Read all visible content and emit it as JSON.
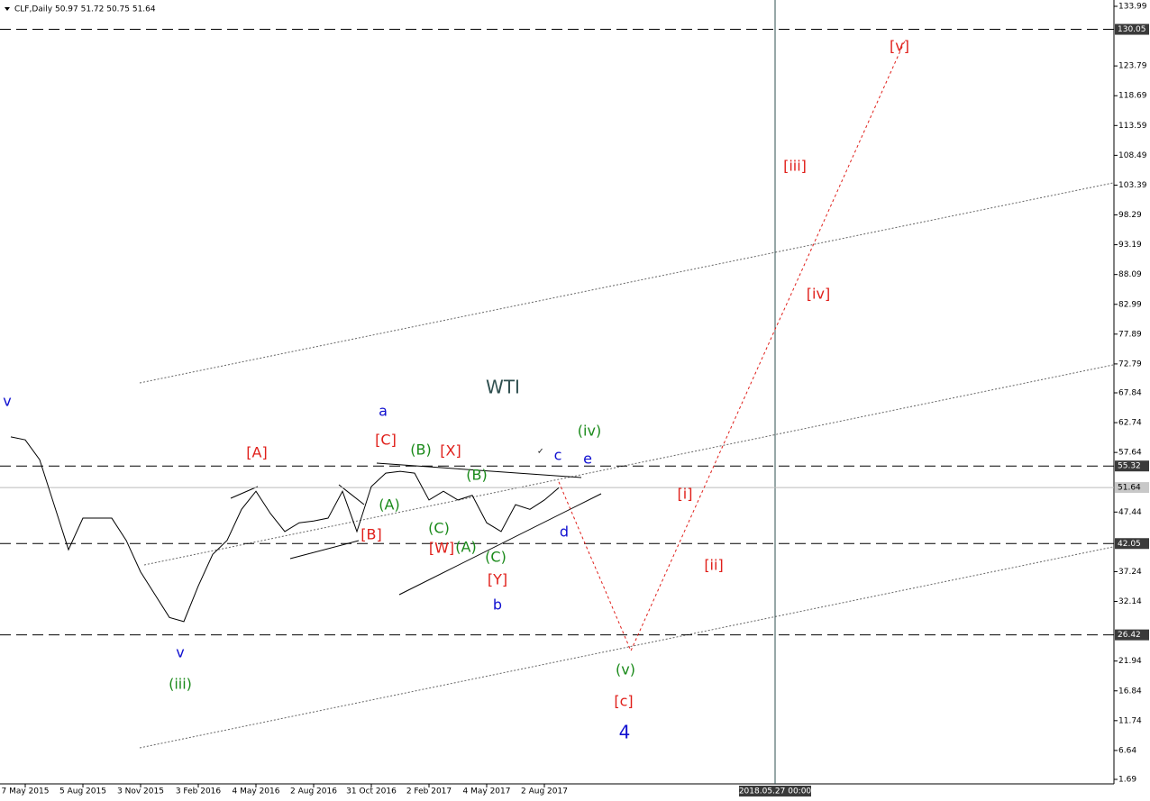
{
  "chart_data": {
    "type": "line",
    "title": "CLF,Daily  50.97 51.72 50.75 51.64",
    "categories": [
      null,
      "7 May 2015",
      null,
      null,
      null,
      "5 Aug 2015",
      null,
      null,
      null,
      "3 Nov 2015",
      null,
      null,
      null,
      "3 Feb 2016",
      null,
      null,
      null,
      "4 May 2016",
      null,
      null,
      null,
      "2 Aug 2016",
      null,
      null,
      null,
      "31 Oct 2016",
      null,
      null,
      null,
      "2 Feb 2017",
      null,
      null,
      null,
      "4 May 2017",
      null,
      null,
      null,
      "2 Aug 2017",
      null,
      null,
      null,
      null,
      null,
      null,
      null,
      null,
      null,
      null,
      null,
      null,
      null,
      null,
      null,
      "2018.05.27 00:00",
      null,
      null,
      null,
      null,
      null,
      null,
      null,
      null,
      null,
      null,
      null,
      null,
      null,
      null,
      null,
      null,
      null,
      null,
      null,
      null,
      null,
      null,
      null
    ],
    "highlight_category": "2018.05.27 00:00",
    "series": [
      {
        "color": "#000000",
        "style": "solid",
        "values": [
          60.3,
          59.8,
          56.4,
          48.7,
          41.0,
          46.4,
          46.4,
          46.4,
          42.6,
          37.2,
          33.3,
          29.4,
          28.7,
          34.8,
          40.2,
          42.6,
          47.9,
          51.0,
          47.2,
          44.1,
          45.6,
          45.9,
          46.4,
          51.0,
          44.1,
          51.8,
          54.1,
          54.4,
          54.1,
          49.5,
          51.0,
          49.5,
          50.3,
          45.6,
          44.1,
          48.7,
          47.9,
          49.5,
          51.6,
          null,
          null,
          null,
          null,
          null,
          null,
          null,
          null,
          null,
          null,
          null,
          null,
          null,
          null,
          null,
          null,
          null,
          null,
          null,
          null,
          null,
          null,
          null,
          null,
          null,
          null,
          null,
          null,
          null,
          null,
          null,
          null,
          null,
          null,
          null,
          null,
          null,
          null
        ]
      },
      {
        "color": "#e0201b",
        "style": "dotted",
        "values": [
          null,
          null,
          null,
          null,
          null,
          null,
          null,
          null,
          null,
          null,
          null,
          null,
          null,
          null,
          null,
          null,
          null,
          null,
          null,
          null,
          null,
          null,
          null,
          null,
          null,
          null,
          null,
          null,
          null,
          null,
          null,
          null,
          null,
          null,
          null,
          null,
          null,
          null,
          52.6,
          46.8,
          41.0,
          35.3,
          29.5,
          23.7,
          29.2,
          34.7,
          40.2,
          45.7,
          51.2,
          56.7,
          62.2,
          67.7,
          73.2,
          78.7,
          84.1,
          89.6,
          95.1,
          100.6,
          106.1,
          111.6,
          117.1,
          122.6,
          128.1,
          null,
          null,
          null,
          null,
          null,
          null,
          null,
          null,
          null,
          null,
          null,
          null,
          null,
          null
        ]
      }
    ],
    "ylim": [
      0.92,
      135.07
    ],
    "yticks": [
      133.99,
      123.79,
      118.69,
      113.59,
      108.49,
      103.39,
      98.29,
      93.19,
      88.09,
      82.99,
      77.89,
      72.79,
      67.84,
      62.74,
      57.64,
      47.44,
      37.24,
      32.14,
      21.94,
      16.84,
      11.74,
      6.64,
      1.69
    ],
    "levels": [
      130.05,
      55.32,
      42.05,
      26.42
    ],
    "last_price": 51.64,
    "annotations": [
      {
        "text": "v",
        "color": "#1010d0"
      },
      {
        "text": "v",
        "color": "#1010d0"
      },
      {
        "text": "(iii)",
        "color": "#1a8a1a"
      },
      {
        "text": "[A]",
        "color": "#e0201b"
      },
      {
        "text": "[B]",
        "color": "#e0201b"
      },
      {
        "text": "a",
        "color": "#1010d0"
      },
      {
        "text": "[C]",
        "color": "#e0201b"
      },
      {
        "text": "(B)",
        "color": "#1a8a1a"
      },
      {
        "text": "[X]",
        "color": "#e0201b"
      },
      {
        "text": "(A)",
        "color": "#1a8a1a"
      },
      {
        "text": "(C)",
        "color": "#1a8a1a"
      },
      {
        "text": "[W]",
        "color": "#e0201b"
      },
      {
        "text": "(A)",
        "color": "#1a8a1a"
      },
      {
        "text": "(B)",
        "color": "#1a8a1a"
      },
      {
        "text": "(C)",
        "color": "#1a8a1a"
      },
      {
        "text": "[Y]",
        "color": "#e0201b"
      },
      {
        "text": "b",
        "color": "#1010d0"
      },
      {
        "text": "WTI",
        "color": "#2f4f4f"
      },
      {
        "text": "c",
        "color": "#1010d0"
      },
      {
        "text": "d",
        "color": "#1010d0"
      },
      {
        "text": "e",
        "color": "#1010d0"
      },
      {
        "text": "(iv)",
        "color": "#1a8a1a"
      },
      {
        "text": "(v)",
        "color": "#1a8a1a"
      },
      {
        "text": "[c]",
        "color": "#e0201b"
      },
      {
        "text": "4",
        "color": "#1010d0"
      },
      {
        "text": "[i]",
        "color": "#e0201b"
      },
      {
        "text": "[ii]",
        "color": "#e0201b"
      },
      {
        "text": "[iii]",
        "color": "#e0201b"
      },
      {
        "text": "[iv]",
        "color": "#e0201b"
      },
      {
        "text": "[v]",
        "color": "#e0201b"
      }
    ]
  }
}
